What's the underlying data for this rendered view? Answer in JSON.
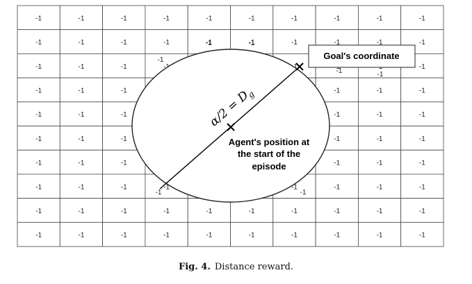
{
  "grid": {
    "rows": 10,
    "cols": 10,
    "cell_value": "-1"
  },
  "annotations": {
    "goal_label": "Goal's coordinate",
    "agent_label_lines": [
      "Agent's position at",
      "the start of the",
      "episode"
    ],
    "radius_formula": "α/2 = D",
    "radius_subscript": "g"
  },
  "caption": {
    "label": "Fig. 4.",
    "text": "Distance reward."
  },
  "colors": {
    "grid_line": "#444444",
    "ellipse_fill": "#ffffff",
    "stroke": "#222222"
  }
}
